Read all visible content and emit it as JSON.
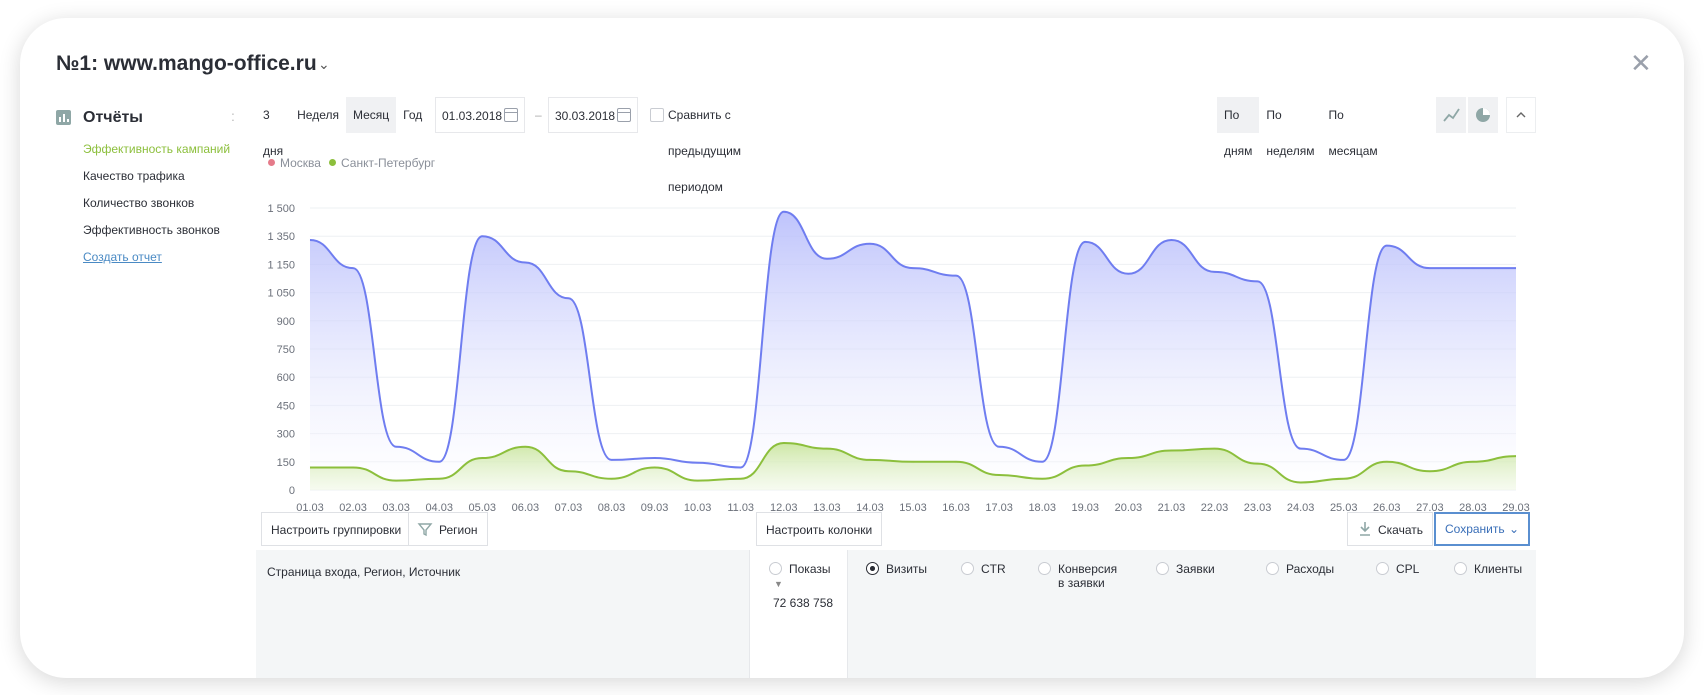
{
  "window": {
    "title": "№1: www.mango-office.ru"
  },
  "sidebar": {
    "title": "Отчёты",
    "items": [
      {
        "label": "Эффективность кампаний"
      },
      {
        "label": "Качество трафика"
      },
      {
        "label": "Количество звонков"
      },
      {
        "label": "Эффективность звонков"
      },
      {
        "label": "Создать отчет"
      }
    ]
  },
  "toolbar": {
    "periods": [
      "3 дня",
      "Неделя",
      "Месяц",
      "Год"
    ],
    "active_period": "Месяц",
    "date_from": "01.03.2018",
    "date_sep": "–",
    "date_to": "30.03.2018",
    "compare_label": "Сравнить с предыдущим периодом",
    "granularity": [
      "По дням",
      "По неделям",
      "По месяцам"
    ],
    "active_granularity": "По дням"
  },
  "colors": {
    "moscow": "#e57b8a",
    "spb": "#8cbf3c",
    "moscow_line": "#6f7df0",
    "active_green": "#8cbf3c",
    "accent_blue": "#4a8ac4"
  },
  "chart_data": {
    "type": "area",
    "legend": [
      "Москва",
      "Санкт-Петербург"
    ],
    "x": [
      "01.03",
      "02.03",
      "03.03",
      "04.03",
      "05.03",
      "06.03",
      "07.03",
      "08.03",
      "09.03",
      "10.03",
      "11.03",
      "12.03",
      "13.03",
      "14.03",
      "15.03",
      "16.03",
      "17.03",
      "18.03",
      "19.03",
      "20.03",
      "21.03",
      "22.03",
      "23.03",
      "24.03",
      "25.03",
      "26.03",
      "27.03",
      "28.03",
      "29.03"
    ],
    "y_ticks": [
      "0",
      "150",
      "300",
      "450",
      "600",
      "750",
      "900",
      "1 050",
      "1 150",
      "1 350",
      "1 500"
    ],
    "ylim": [
      0,
      1500
    ],
    "series": [
      {
        "name": "Москва",
        "values": [
          1330,
          1180,
          230,
          150,
          1350,
          1210,
          1020,
          160,
          170,
          145,
          120,
          1480,
          1230,
          1310,
          1180,
          1140,
          230,
          150,
          1320,
          1150,
          1330,
          1160,
          1110,
          220,
          160,
          1300,
          1180,
          1180,
          1180
        ]
      },
      {
        "name": "Санкт-Петербург",
        "values": [
          120,
          120,
          50,
          60,
          170,
          230,
          100,
          60,
          120,
          50,
          60,
          250,
          220,
          160,
          150,
          150,
          80,
          60,
          130,
          170,
          210,
          220,
          140,
          40,
          60,
          150,
          100,
          150,
          180
        ]
      }
    ]
  },
  "bottom": {
    "group_btn": "Настроить группировки",
    "region_btn": "Регион",
    "columns_btn": "Настроить колонки",
    "download_btn": "Скачать",
    "save_btn": "Сохранить",
    "row_header": "Страница входа, Регион, Источник",
    "shows_label": "Показы",
    "shows_total": "72 638 758",
    "metrics": [
      "Визиты",
      "CTR",
      "Конверсия",
      "в заявки",
      "Заявки",
      "Расходы",
      "CPL",
      "Клиенты"
    ]
  }
}
